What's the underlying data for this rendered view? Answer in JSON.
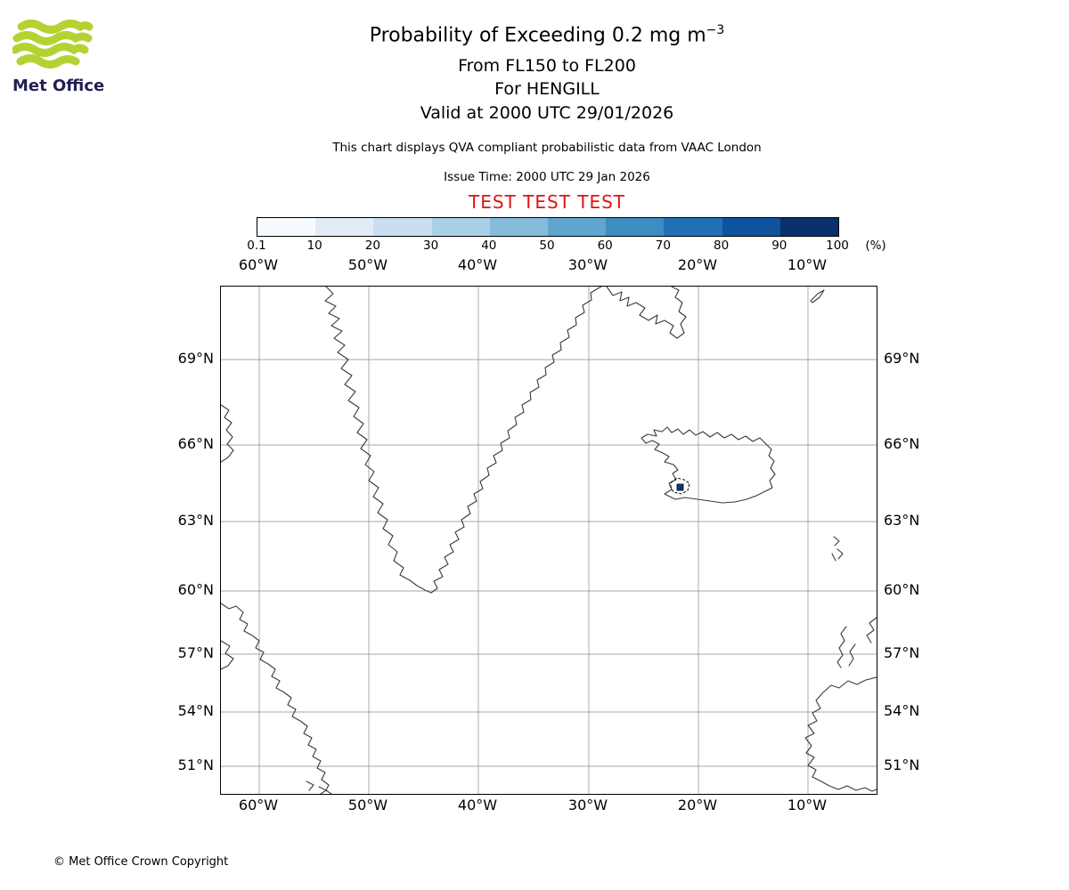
{
  "logo": {
    "brand": "Met Office"
  },
  "header": {
    "title_main": "Probability of Exceeding 0.2 mg m",
    "title_exponent": "−3",
    "subtitle1": "From FL150 to FL200",
    "subtitle2": "For HENGILL",
    "subtitle3": "Valid at 2000 UTC 29/01/2026",
    "description": "This chart displays QVA compliant probabilistic data from VAAC London",
    "issue_time": "Issue Time: 2000 UTC 29 Jan 2026",
    "test_banner": "TEST TEST TEST",
    "test_banner_color": "#e01212"
  },
  "colorbar": {
    "tick_labels": [
      "0.1",
      "10",
      "20",
      "30",
      "40",
      "50",
      "60",
      "70",
      "80",
      "90",
      "100"
    ],
    "unit_label": "(%)",
    "colors": [
      "#f7fbff",
      "#e1ecf7",
      "#cbdef1",
      "#abd0e6",
      "#85bcdb",
      "#5fa6d1",
      "#3d8dc3",
      "#2171b5",
      "#0f529e",
      "#08306b"
    ]
  },
  "map": {
    "lon_labels": [
      "60°W",
      "50°W",
      "40°W",
      "30°W",
      "20°W",
      "10°W"
    ],
    "lat_labels": [
      "69°N",
      "66°N",
      "63°N",
      "60°N",
      "57°N",
      "54°N",
      "51°N"
    ],
    "marker": {
      "name": "HENGILL",
      "fill": "#0a3a78"
    }
  },
  "footer": {
    "copyright": "© Met Office Crown Copyright"
  }
}
